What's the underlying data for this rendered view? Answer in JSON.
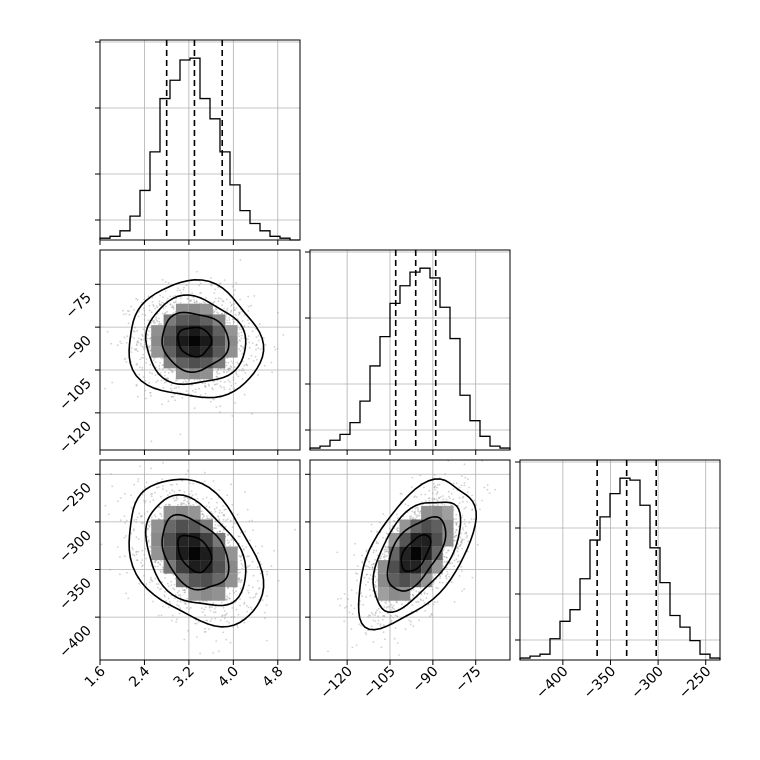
{
  "chart_data": {
    "type": "corner",
    "title": "",
    "parameters": [
      {
        "label": "",
        "range": [
          1.6,
          5.2
        ],
        "ticks": [
          1.6,
          2.4,
          3.2,
          4.0,
          4.8
        ],
        "tick_labels": [
          "1.6",
          "2.4",
          "3.2",
          "4.0",
          "4.8"
        ],
        "quantiles": [
          2.8,
          3.3,
          3.8
        ],
        "histogram": {
          "bin_edges": [
            1.6,
            1.78,
            1.96,
            2.14,
            2.32,
            2.5,
            2.68,
            2.86,
            3.04,
            3.22,
            3.4,
            3.58,
            3.76,
            3.94,
            4.12,
            4.3,
            4.48,
            4.66,
            4.84,
            5.02,
            5.2
          ],
          "counts": [
            1,
            2,
            5,
            13,
            27,
            48,
            77,
            87,
            98,
            99,
            77,
            66,
            48,
            30,
            16,
            9,
            5,
            2,
            1,
            0
          ]
        }
      },
      {
        "label": "",
        "range": [
          -133,
          -63
        ],
        "ticks": [
          -120,
          -105,
          -90,
          -75
        ],
        "tick_labels": [
          "−120",
          "−105",
          "−90",
          "−75"
        ],
        "quantiles": [
          -103,
          -96,
          -89
        ],
        "histogram": {
          "bin_edges": [
            -133,
            -129.5,
            -126,
            -122.5,
            -119,
            -115.5,
            -112,
            -108.5,
            -105,
            -101.5,
            -98,
            -94.5,
            -91,
            -87.5,
            -84,
            -80.5,
            -77,
            -73.5,
            -70,
            -66.5,
            -63
          ],
          "counts": [
            1,
            2,
            5,
            8,
            14,
            25,
            43,
            58,
            75,
            84,
            91,
            93,
            88,
            73,
            57,
            28,
            15,
            7,
            2,
            1
          ]
        }
      },
      {
        "label": "",
        "range": [
          -445,
          -235
        ],
        "ticks": [
          -400,
          -350,
          -300,
          -250
        ],
        "tick_labels": [
          "−400",
          "−350",
          "−300",
          "−250"
        ],
        "quantiles": [
          -364,
          -333,
          -302
        ],
        "histogram": {
          "bin_edges": [
            -445,
            -434.5,
            -424,
            -413.5,
            -403,
            -392.5,
            -382,
            -371.5,
            -361,
            -350.5,
            -340,
            -329.5,
            -319,
            -308.5,
            -298,
            -287.5,
            -277,
            -266.5,
            -256,
            -245.5,
            -235
          ],
          "counts": [
            1,
            2,
            3,
            11,
            20,
            26,
            42,
            62,
            74,
            86,
            94,
            93,
            80,
            58,
            40,
            23,
            17,
            10,
            3,
            1
          ]
        }
      }
    ],
    "pairs": [
      {
        "x_param": 0,
        "y_param": 1,
        "mean": [
          3.3,
          -95
        ],
        "std": [
          0.5,
          8.5
        ],
        "corr": -0.05
      },
      {
        "x_param": 0,
        "y_param": 2,
        "mean": [
          3.3,
          -333
        ],
        "std": [
          0.5,
          32
        ],
        "corr": -0.35
      },
      {
        "x_param": 1,
        "y_param": 2,
        "mean": [
          -96,
          -333
        ],
        "std": [
          8.5,
          32
        ],
        "corr": 0.55
      }
    ],
    "grid": true,
    "legend": "none"
  }
}
